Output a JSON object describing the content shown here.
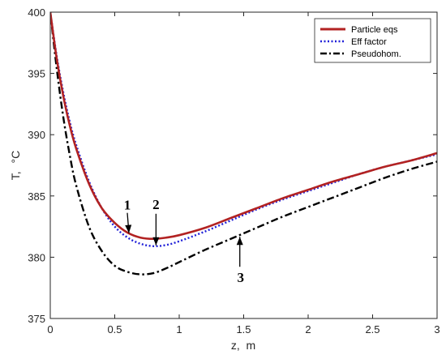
{
  "chart_data": {
    "type": "line",
    "xlabel": "z,  m",
    "ylabel": "T,",
    "ylabel_unit": "°C",
    "xlim": [
      0,
      3
    ],
    "ylim": [
      375,
      400
    ],
    "xticks": [
      "0",
      "0.5",
      "1",
      "1.5",
      "2",
      "2.5",
      "3"
    ],
    "yticks": [
      "375",
      "380",
      "385",
      "390",
      "395",
      "400"
    ],
    "grid": false,
    "legend_position": "top-right",
    "series": [
      {
        "name": "Particle eqs",
        "color": "#b22222",
        "style": "solid",
        "x": [
          0,
          0.05,
          0.1,
          0.15,
          0.2,
          0.3,
          0.4,
          0.5,
          0.6,
          0.7,
          0.8,
          0.9,
          1.0,
          1.2,
          1.4,
          1.6,
          1.8,
          2.0,
          2.2,
          2.4,
          2.6,
          2.8,
          3.0
        ],
        "y": [
          400,
          396.2,
          393.2,
          390.8,
          388.9,
          386.0,
          384.0,
          382.8,
          382.0,
          381.6,
          381.5,
          381.6,
          381.8,
          382.4,
          383.2,
          384.0,
          384.8,
          385.5,
          386.2,
          386.8,
          387.4,
          387.9,
          388.5
        ]
      },
      {
        "name": "Eff factor",
        "color": "#2020d8",
        "style": "dotted",
        "x": [
          0,
          0.05,
          0.1,
          0.15,
          0.2,
          0.3,
          0.4,
          0.5,
          0.6,
          0.7,
          0.8,
          0.9,
          1.0,
          1.2,
          1.4,
          1.6,
          1.8,
          2.0,
          2.2,
          2.4,
          2.6,
          2.8,
          3.0
        ],
        "y": [
          400,
          396.4,
          393.5,
          391.1,
          389.2,
          386.2,
          384.0,
          382.5,
          381.6,
          381.1,
          380.9,
          381.0,
          381.3,
          382.1,
          383.0,
          383.9,
          384.7,
          385.4,
          386.1,
          386.8,
          387.4,
          387.9,
          388.4
        ]
      },
      {
        "name": "Pseudohom.",
        "color": "#000000",
        "style": "dashdot",
        "x": [
          0,
          0.05,
          0.1,
          0.15,
          0.2,
          0.3,
          0.4,
          0.5,
          0.6,
          0.7,
          0.8,
          0.9,
          1.0,
          1.2,
          1.4,
          1.6,
          1.8,
          2.0,
          2.2,
          2.4,
          2.6,
          2.8,
          3.0
        ],
        "y": [
          400,
          395.4,
          391.5,
          388.4,
          385.9,
          382.5,
          380.5,
          379.3,
          378.8,
          378.6,
          378.7,
          379.1,
          379.6,
          380.6,
          381.5,
          382.4,
          383.3,
          384.1,
          384.9,
          385.7,
          386.5,
          387.2,
          387.8
        ]
      }
    ],
    "annotations": [
      {
        "text": "1",
        "arrow_x": 0.61,
        "arrow_y": 381.9
      },
      {
        "text": "2",
        "arrow_x": 0.82,
        "arrow_y": 380.9
      },
      {
        "text": "3",
        "arrow_x": 1.47,
        "arrow_y": 381.6
      }
    ]
  }
}
